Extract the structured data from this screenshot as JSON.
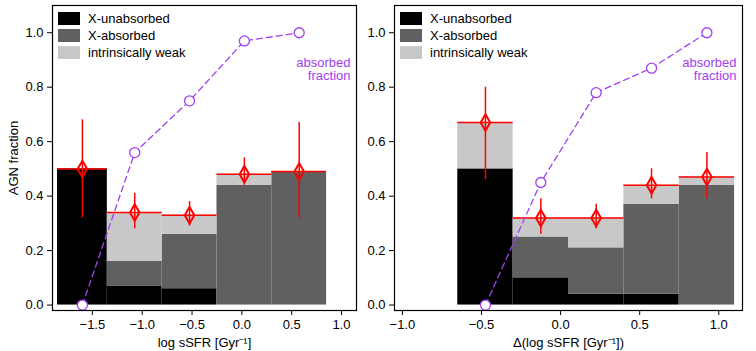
{
  "chart_data": [
    {
      "type": "bar",
      "stacked": true,
      "legend": "upper left",
      "x_label": "log sSFR [Gyr⁻¹]",
      "y_label": "AGN fraction",
      "bins": [
        -1.85,
        -1.35,
        -0.8,
        -0.25,
        0.3,
        0.85
      ],
      "series": [
        {
          "name": "X-unabsorbed",
          "color": "#000000",
          "values": [
            0.5,
            0.07,
            0.06,
            0.0,
            0.0
          ]
        },
        {
          "name": "X-absorbed",
          "color": "#606060",
          "values": [
            0.0,
            0.09,
            0.2,
            0.44,
            0.49
          ]
        },
        {
          "name": "intrinsically weak",
          "color": "#c8c8c8",
          "values": [
            0.0,
            0.18,
            0.07,
            0.04,
            0.0
          ]
        }
      ],
      "agn_fraction": {
        "color": "#ff0000",
        "marker": "diamond",
        "values": [
          0.5,
          0.34,
          0.33,
          0.48,
          0.49
        ],
        "lower": [
          0.32,
          0.28,
          0.29,
          0.44,
          0.32
        ],
        "upper": [
          0.68,
          0.41,
          0.38,
          0.54,
          0.67
        ]
      },
      "absorbed_fraction": {
        "name": "absorbed fraction",
        "color": "#a040f0",
        "line_style": "dashed",
        "marker": "circle",
        "values": [
          0.0,
          0.56,
          0.75,
          0.97,
          1.0
        ]
      },
      "xlim": [
        -1.9,
        1.15
      ],
      "xticks": [
        {
          "value": -1.5,
          "label": "−1.5"
        },
        {
          "value": -1,
          "label": "−1.0"
        },
        {
          "value": -0.5,
          "label": "−0.5"
        },
        {
          "value": 0,
          "label": "0.0"
        },
        {
          "value": 0.5,
          "label": "0.5"
        },
        {
          "value": 1,
          "label": "1.0"
        }
      ],
      "ylim": [
        -0.02,
        1.1
      ],
      "yticks": [
        {
          "value": 0,
          "label": "0.0"
        },
        0.2,
        0.4,
        0.6,
        0.8,
        {
          "value": 1,
          "label": "1.0"
        }
      ]
    },
    {
      "type": "bar",
      "stacked": true,
      "legend": "upper left",
      "x_label": "Δ(log sSFR [Gyr⁻¹])",
      "bins": [
        -0.65,
        -0.3,
        0.05,
        0.4,
        0.75,
        1.1
      ],
      "series": [
        {
          "name": "X-unabsorbed",
          "color": "#000000",
          "values": [
            0.5,
            0.1,
            0.04,
            0.04,
            0.0
          ]
        },
        {
          "name": "X-absorbed",
          "color": "#606060",
          "values": [
            0.0,
            0.15,
            0.17,
            0.33,
            0.44
          ]
        },
        {
          "name": "intrinsically weak",
          "color": "#c8c8c8",
          "values": [
            0.17,
            0.07,
            0.11,
            0.07,
            0.03
          ]
        }
      ],
      "agn_fraction": {
        "color": "#ff0000",
        "marker": "diamond",
        "values": [
          0.67,
          0.32,
          0.32,
          0.44,
          0.47
        ],
        "lower": [
          0.46,
          0.26,
          0.28,
          0.39,
          0.39
        ],
        "upper": [
          0.8,
          0.39,
          0.37,
          0.5,
          0.56
        ]
      },
      "absorbed_fraction": {
        "name": "absorbed fraction",
        "color": "#a040f0",
        "line_style": "dashed",
        "marker": "circle",
        "values": [
          0.0,
          0.45,
          0.78,
          0.87,
          1.0
        ]
      },
      "xlim": [
        -1.05,
        1.15
      ],
      "xticks": [
        {
          "value": -1,
          "label": "−1.0"
        },
        {
          "value": -0.5,
          "label": "−0.5"
        },
        {
          "value": 0,
          "label": "0.0"
        },
        {
          "value": 0.5,
          "label": "0.5"
        },
        {
          "value": 1,
          "label": "1.0"
        }
      ],
      "ylim": [
        -0.02,
        1.1
      ],
      "yticks": [
        {
          "value": 0,
          "label": "0.0"
        },
        0.2,
        0.4,
        0.6,
        0.8,
        {
          "value": 1,
          "label": "1.0"
        }
      ]
    }
  ]
}
